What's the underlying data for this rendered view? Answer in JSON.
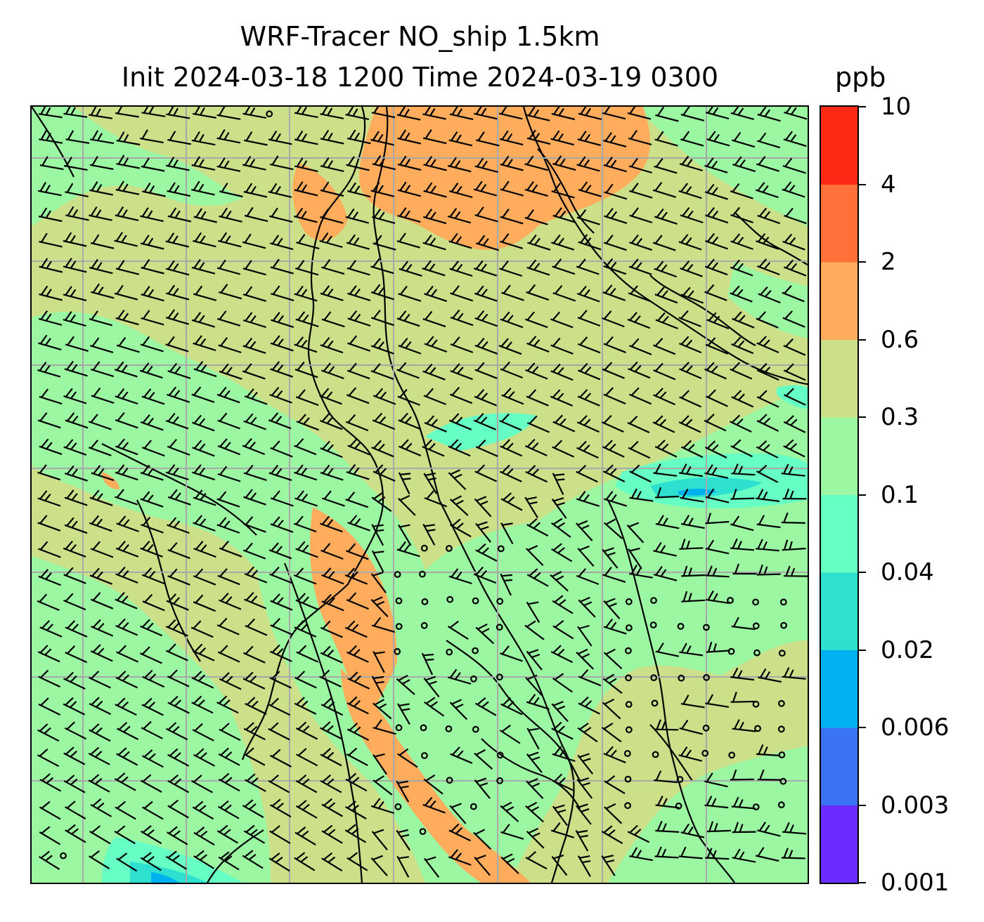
{
  "title": {
    "line1": "WRF-Tracer NO_ship 1.5km",
    "line2": "Init 2024-03-18 1200 Time 2024-03-19 0300",
    "units": "ppb"
  },
  "colorbar": {
    "levels": [
      "0.001",
      "0.003",
      "0.006",
      "0.02",
      "0.04",
      "0.1",
      "0.3",
      "0.6",
      "2",
      "4",
      "10"
    ],
    "colors": [
      "#6a2cff",
      "#3a74f5",
      "#00b2f0",
      "#2ee0d0",
      "#66ffc4",
      "#9cf7a3",
      "#cbe088",
      "#ffad5c",
      "#ff7138",
      "#ff2a16"
    ]
  },
  "map": {
    "fill_colors": {
      "land_base": "#cbe088",
      "low": "#9cf7a3",
      "lower": "#66ffc4",
      "lowest": "#2ee0d0",
      "min": "#00b2f0",
      "high": "#ffad5c"
    },
    "gridlines": "on",
    "grid_color": "#a8a8a8",
    "coastline_color": "#000000",
    "barb_color": "#000000",
    "calm_marker": "circle"
  }
}
